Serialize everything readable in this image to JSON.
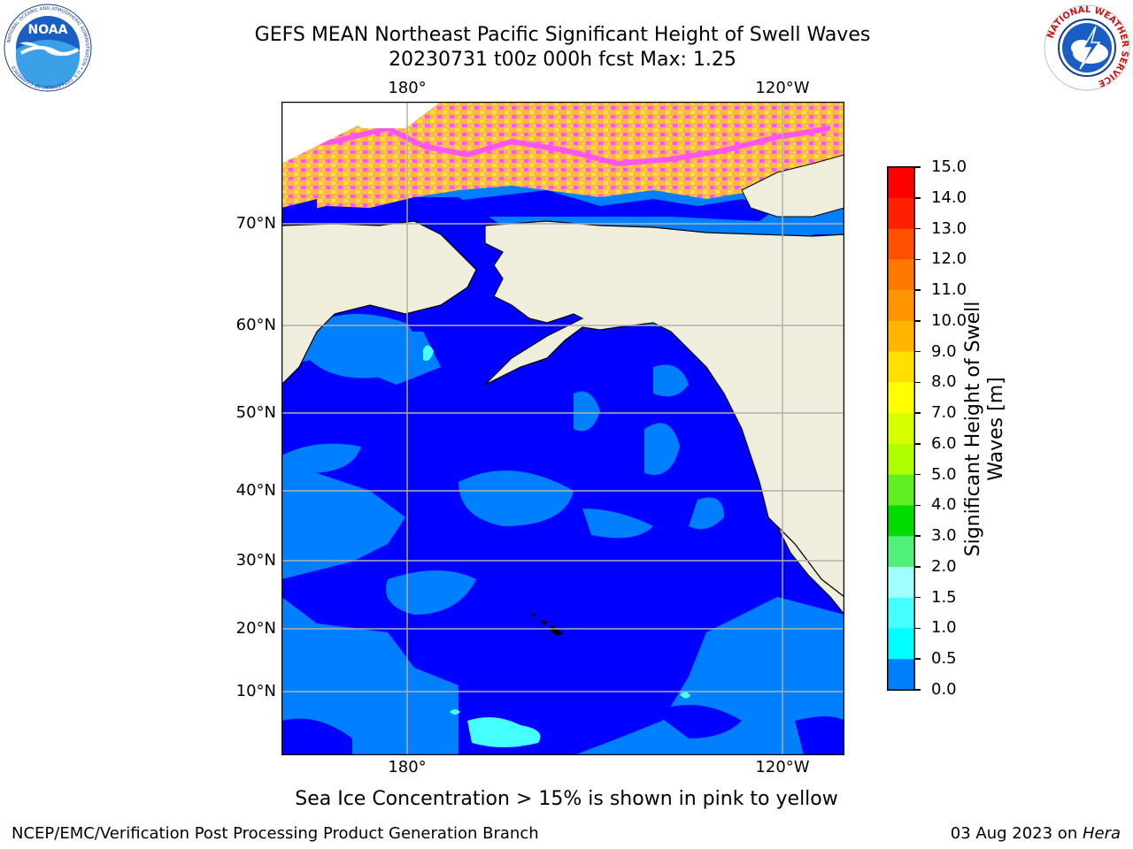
{
  "header": {
    "title_line1": "GEFS MEAN Northeast Pacific Significant Height of Swell Waves",
    "title_line2": "20230731 t00z 000h fcst   Max: 1.25"
  },
  "logos": {
    "noaa": {
      "center_text": "NOAA",
      "ring_text": "NATIONAL OCEANIC AND ATMOSPHERIC ADMINISTRATION • U.S. DEPARTMENT OF COMMERCE",
      "icon": "noaa-logo-icon"
    },
    "nws": {
      "ring_text": "NATIONAL WEATHER SERVICE",
      "icon": "nws-logo-icon"
    }
  },
  "axes": {
    "x_ticks_top": [
      "180°",
      "120°W"
    ],
    "x_ticks_bottom": [
      "180°",
      "120°W"
    ],
    "y_ticks": [
      "70°N",
      "60°N",
      "50°N",
      "40°N",
      "30°N",
      "20°N",
      "10°N"
    ]
  },
  "colorbar": {
    "label_line1": "Significant Height of Swell",
    "label_line2": "Waves [m]",
    "ticks": [
      "15.0",
      "14.0",
      "13.0",
      "12.0",
      "11.0",
      "10.0",
      "9.0",
      "8.0",
      "7.0",
      "6.0",
      "5.0",
      "4.0",
      "3.0",
      "2.0",
      "1.5",
      "1.0",
      "0.5",
      "0.0"
    ],
    "colors": [
      "#ff0000",
      "#ff2000",
      "#ff5000",
      "#ff7800",
      "#ff9400",
      "#ffb400",
      "#ffe000",
      "#ffff00",
      "#d8ff00",
      "#b0ff00",
      "#60f020",
      "#00dc00",
      "#50f07a",
      "#a0ffff",
      "#46ffff",
      "#00ffff",
      "#0080ff",
      "#0000ff"
    ]
  },
  "legend": {
    "map_colors": {
      "land": "#efeddc",
      "swell_low": "#0000ff",
      "swell_mid": "#0080ff",
      "swell_high": "#46ffff",
      "ice_pink": "#ff55f0",
      "ice_orange": "#ffb648",
      "ice_yellow": "#ffe040"
    }
  },
  "footer": {
    "caption": "Sea Ice Concentration > 15% is shown in pink to yellow",
    "left": "NCEP/EMC/Verification Post Processing Product Generation Branch",
    "right_date": "03 Aug 2023 on ",
    "right_machine": "Hera"
  }
}
